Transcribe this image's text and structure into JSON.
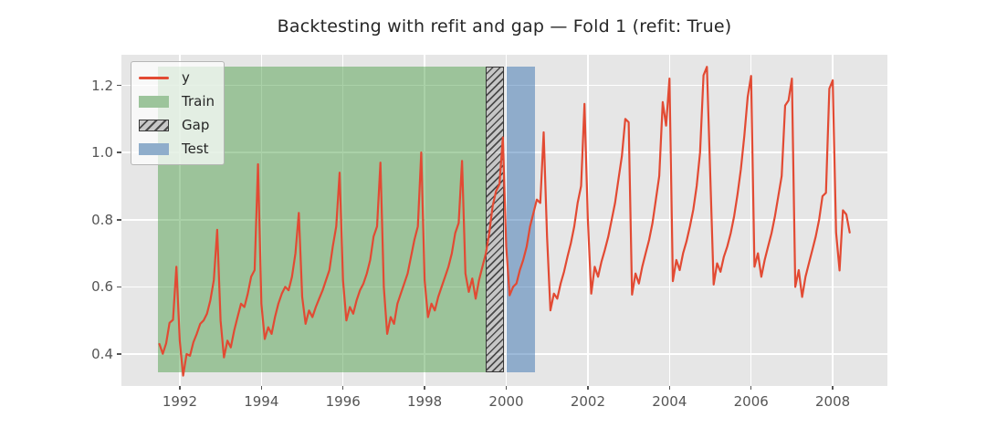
{
  "figure": {
    "title": "Backtesting with refit and gap — Fold 1 (refit: True)"
  },
  "colors": {
    "figure_background": "#FFFFFF",
    "axes_background": "#E6E6E6",
    "grid": "#FFFFFF",
    "series_line": "#E24A33",
    "train_fill": "rgba(66,154,63,0.45)",
    "test_fill": "rgba(37,103,170,0.45)",
    "gap_fill": "rgba(160,160,160,0.45)",
    "gap_hatch": "#4A4A4A",
    "gap_edge": "#3A3A3A",
    "tick_color": "#555555",
    "tick_label_color": "#555555",
    "title_color": "#262626",
    "legend_text": "#262626",
    "train_swatch": "#9CC49B",
    "test_swatch": "#8FADCB",
    "gap_swatch_fill": "#C8C8C8"
  },
  "legend": {
    "items": [
      {
        "label": "y",
        "kind": "line"
      },
      {
        "label": "Train",
        "kind": "patch"
      },
      {
        "label": "Gap",
        "kind": "hatch"
      },
      {
        "label": "Test",
        "kind": "patch"
      }
    ]
  },
  "chart_data": {
    "type": "line",
    "title": "Backtesting with refit and gap — Fold 1 (refit: True)",
    "xlabel": "",
    "ylabel": "",
    "grid": true,
    "legend_position": "upper left",
    "xlim": [
      1990.57,
      2009.34
    ],
    "ylim": [
      0.305,
      1.291
    ],
    "xticks": [
      1992,
      1994,
      1996,
      1998,
      2000,
      2002,
      2004,
      2006,
      2008
    ],
    "yticks": [
      0.4,
      0.6,
      0.8,
      1.0,
      1.2
    ],
    "regions": [
      {
        "name": "Train",
        "x0": 1991.46,
        "x1": 1999.49,
        "y0": 0.346,
        "y1": 1.256
      },
      {
        "name": "Gap",
        "x0": 1999.49,
        "x1": 1999.945,
        "y0": 0.346,
        "y1": 1.256
      },
      {
        "name": "Test",
        "x0": 2000.005,
        "x1": 2000.7,
        "y0": 0.346,
        "y1": 1.256
      }
    ],
    "series": [
      {
        "name": "y",
        "color": "#E24A33",
        "x": [
          1991.5,
          1991.5833,
          1991.6667,
          1991.75,
          1991.8333,
          1991.9167,
          1992.0,
          1992.0833,
          1992.1667,
          1992.25,
          1992.3333,
          1992.4167,
          1992.5,
          1992.5833,
          1992.6667,
          1992.75,
          1992.8333,
          1992.9167,
          1993.0,
          1993.0833,
          1993.1667,
          1993.25,
          1993.3333,
          1993.4167,
          1993.5,
          1993.5833,
          1993.6667,
          1993.75,
          1993.8333,
          1993.9167,
          1994.0,
          1994.0833,
          1994.1667,
          1994.25,
          1994.3333,
          1994.4167,
          1994.5,
          1994.5833,
          1994.6667,
          1994.75,
          1994.8333,
          1994.9167,
          1995.0,
          1995.0833,
          1995.1667,
          1995.25,
          1995.3333,
          1995.4167,
          1995.5,
          1995.5833,
          1995.6667,
          1995.75,
          1995.8333,
          1995.9167,
          1996.0,
          1996.0833,
          1996.1667,
          1996.25,
          1996.3333,
          1996.4167,
          1996.5,
          1996.5833,
          1996.6667,
          1996.75,
          1996.8333,
          1996.9167,
          1997.0,
          1997.0833,
          1997.1667,
          1997.25,
          1997.3333,
          1997.4167,
          1997.5,
          1997.5833,
          1997.6667,
          1997.75,
          1997.8333,
          1997.9167,
          1998.0,
          1998.0833,
          1998.1667,
          1998.25,
          1998.3333,
          1998.4167,
          1998.5,
          1998.5833,
          1998.6667,
          1998.75,
          1998.8333,
          1998.9167,
          1999.0,
          1999.0833,
          1999.1667,
          1999.25,
          1999.3333,
          1999.4167,
          1999.5,
          1999.5833,
          1999.6667,
          1999.75,
          1999.8333,
          1999.9167,
          2000.0,
          2000.0833,
          2000.1667,
          2000.25,
          2000.3333,
          2000.4167,
          2000.5,
          2000.5833,
          2000.6667,
          2000.75,
          2000.8333,
          2000.9167,
          2001.0,
          2001.0833,
          2001.1667,
          2001.25,
          2001.3333,
          2001.4167,
          2001.5,
          2001.5833,
          2001.6667,
          2001.75,
          2001.8333,
          2001.9167,
          2002.0,
          2002.0833,
          2002.1667,
          2002.25,
          2002.3333,
          2002.4167,
          2002.5,
          2002.5833,
          2002.6667,
          2002.75,
          2002.8333,
          2002.9167,
          2003.0,
          2003.0833,
          2003.1667,
          2003.25,
          2003.3333,
          2003.4167,
          2003.5,
          2003.5833,
          2003.6667,
          2003.75,
          2003.8333,
          2003.9167,
          2004.0,
          2004.0833,
          2004.1667,
          2004.25,
          2004.3333,
          2004.4167,
          2004.5,
          2004.5833,
          2004.6667,
          2004.75,
          2004.8333,
          2004.9167,
          2005.0,
          2005.0833,
          2005.1667,
          2005.25,
          2005.3333,
          2005.4167,
          2005.5,
          2005.5833,
          2005.6667,
          2005.75,
          2005.8333,
          2005.9167,
          2006.0,
          2006.0833,
          2006.1667,
          2006.25,
          2006.3333,
          2006.4167,
          2006.5,
          2006.5833,
          2006.6667,
          2006.75,
          2006.8333,
          2006.9167,
          2007.0,
          2007.0833,
          2007.1667,
          2007.25,
          2007.3333,
          2007.4167,
          2007.5,
          2007.5833,
          2007.6667,
          2007.75,
          2007.8333,
          2007.9167,
          2008.0,
          2008.0833,
          2008.1667,
          2008.25,
          2008.3333,
          2008.4167
        ],
        "y": [
          0.43,
          0.401,
          0.432,
          0.493,
          0.502,
          0.66,
          0.44,
          0.336,
          0.4,
          0.395,
          0.435,
          0.46,
          0.49,
          0.5,
          0.52,
          0.56,
          0.62,
          0.77,
          0.5,
          0.39,
          0.44,
          0.42,
          0.47,
          0.51,
          0.55,
          0.54,
          0.58,
          0.63,
          0.65,
          0.965,
          0.55,
          0.445,
          0.48,
          0.46,
          0.51,
          0.55,
          0.58,
          0.6,
          0.59,
          0.63,
          0.7,
          0.82,
          0.57,
          0.49,
          0.53,
          0.51,
          0.54,
          0.565,
          0.59,
          0.62,
          0.65,
          0.72,
          0.78,
          0.94,
          0.62,
          0.5,
          0.54,
          0.52,
          0.56,
          0.59,
          0.61,
          0.64,
          0.68,
          0.75,
          0.78,
          0.97,
          0.6,
          0.46,
          0.51,
          0.49,
          0.55,
          0.58,
          0.61,
          0.64,
          0.69,
          0.74,
          0.78,
          1.0,
          0.62,
          0.51,
          0.55,
          0.53,
          0.57,
          0.6,
          0.63,
          0.66,
          0.7,
          0.76,
          0.79,
          0.975,
          0.64,
          0.585,
          0.625,
          0.565,
          0.62,
          0.66,
          0.7,
          0.76,
          0.84,
          0.885,
          0.905,
          1.045,
          0.72,
          0.575,
          0.6,
          0.61,
          0.65,
          0.68,
          0.72,
          0.78,
          0.82,
          0.86,
          0.85,
          1.06,
          0.75,
          0.53,
          0.58,
          0.565,
          0.61,
          0.645,
          0.69,
          0.73,
          0.78,
          0.85,
          0.9,
          1.145,
          0.8,
          0.58,
          0.66,
          0.63,
          0.675,
          0.71,
          0.75,
          0.8,
          0.85,
          0.92,
          0.99,
          1.1,
          1.09,
          0.577,
          0.64,
          0.61,
          0.66,
          0.7,
          0.74,
          0.79,
          0.86,
          0.93,
          1.15,
          1.08,
          1.22,
          0.617,
          0.68,
          0.65,
          0.7,
          0.735,
          0.78,
          0.83,
          0.9,
          1.0,
          1.23,
          1.255,
          0.93,
          0.607,
          0.67,
          0.645,
          0.69,
          0.72,
          0.76,
          0.81,
          0.875,
          0.95,
          1.05,
          1.166,
          1.228,
          0.66,
          0.7,
          0.63,
          0.68,
          0.72,
          0.76,
          0.81,
          0.87,
          0.93,
          1.14,
          1.155,
          1.22,
          0.6,
          0.65,
          0.57,
          0.63,
          0.67,
          0.71,
          0.75,
          0.8,
          0.87,
          0.88,
          1.19,
          1.215,
          0.762,
          0.649,
          0.828,
          0.816,
          0.762
        ]
      }
    ]
  }
}
